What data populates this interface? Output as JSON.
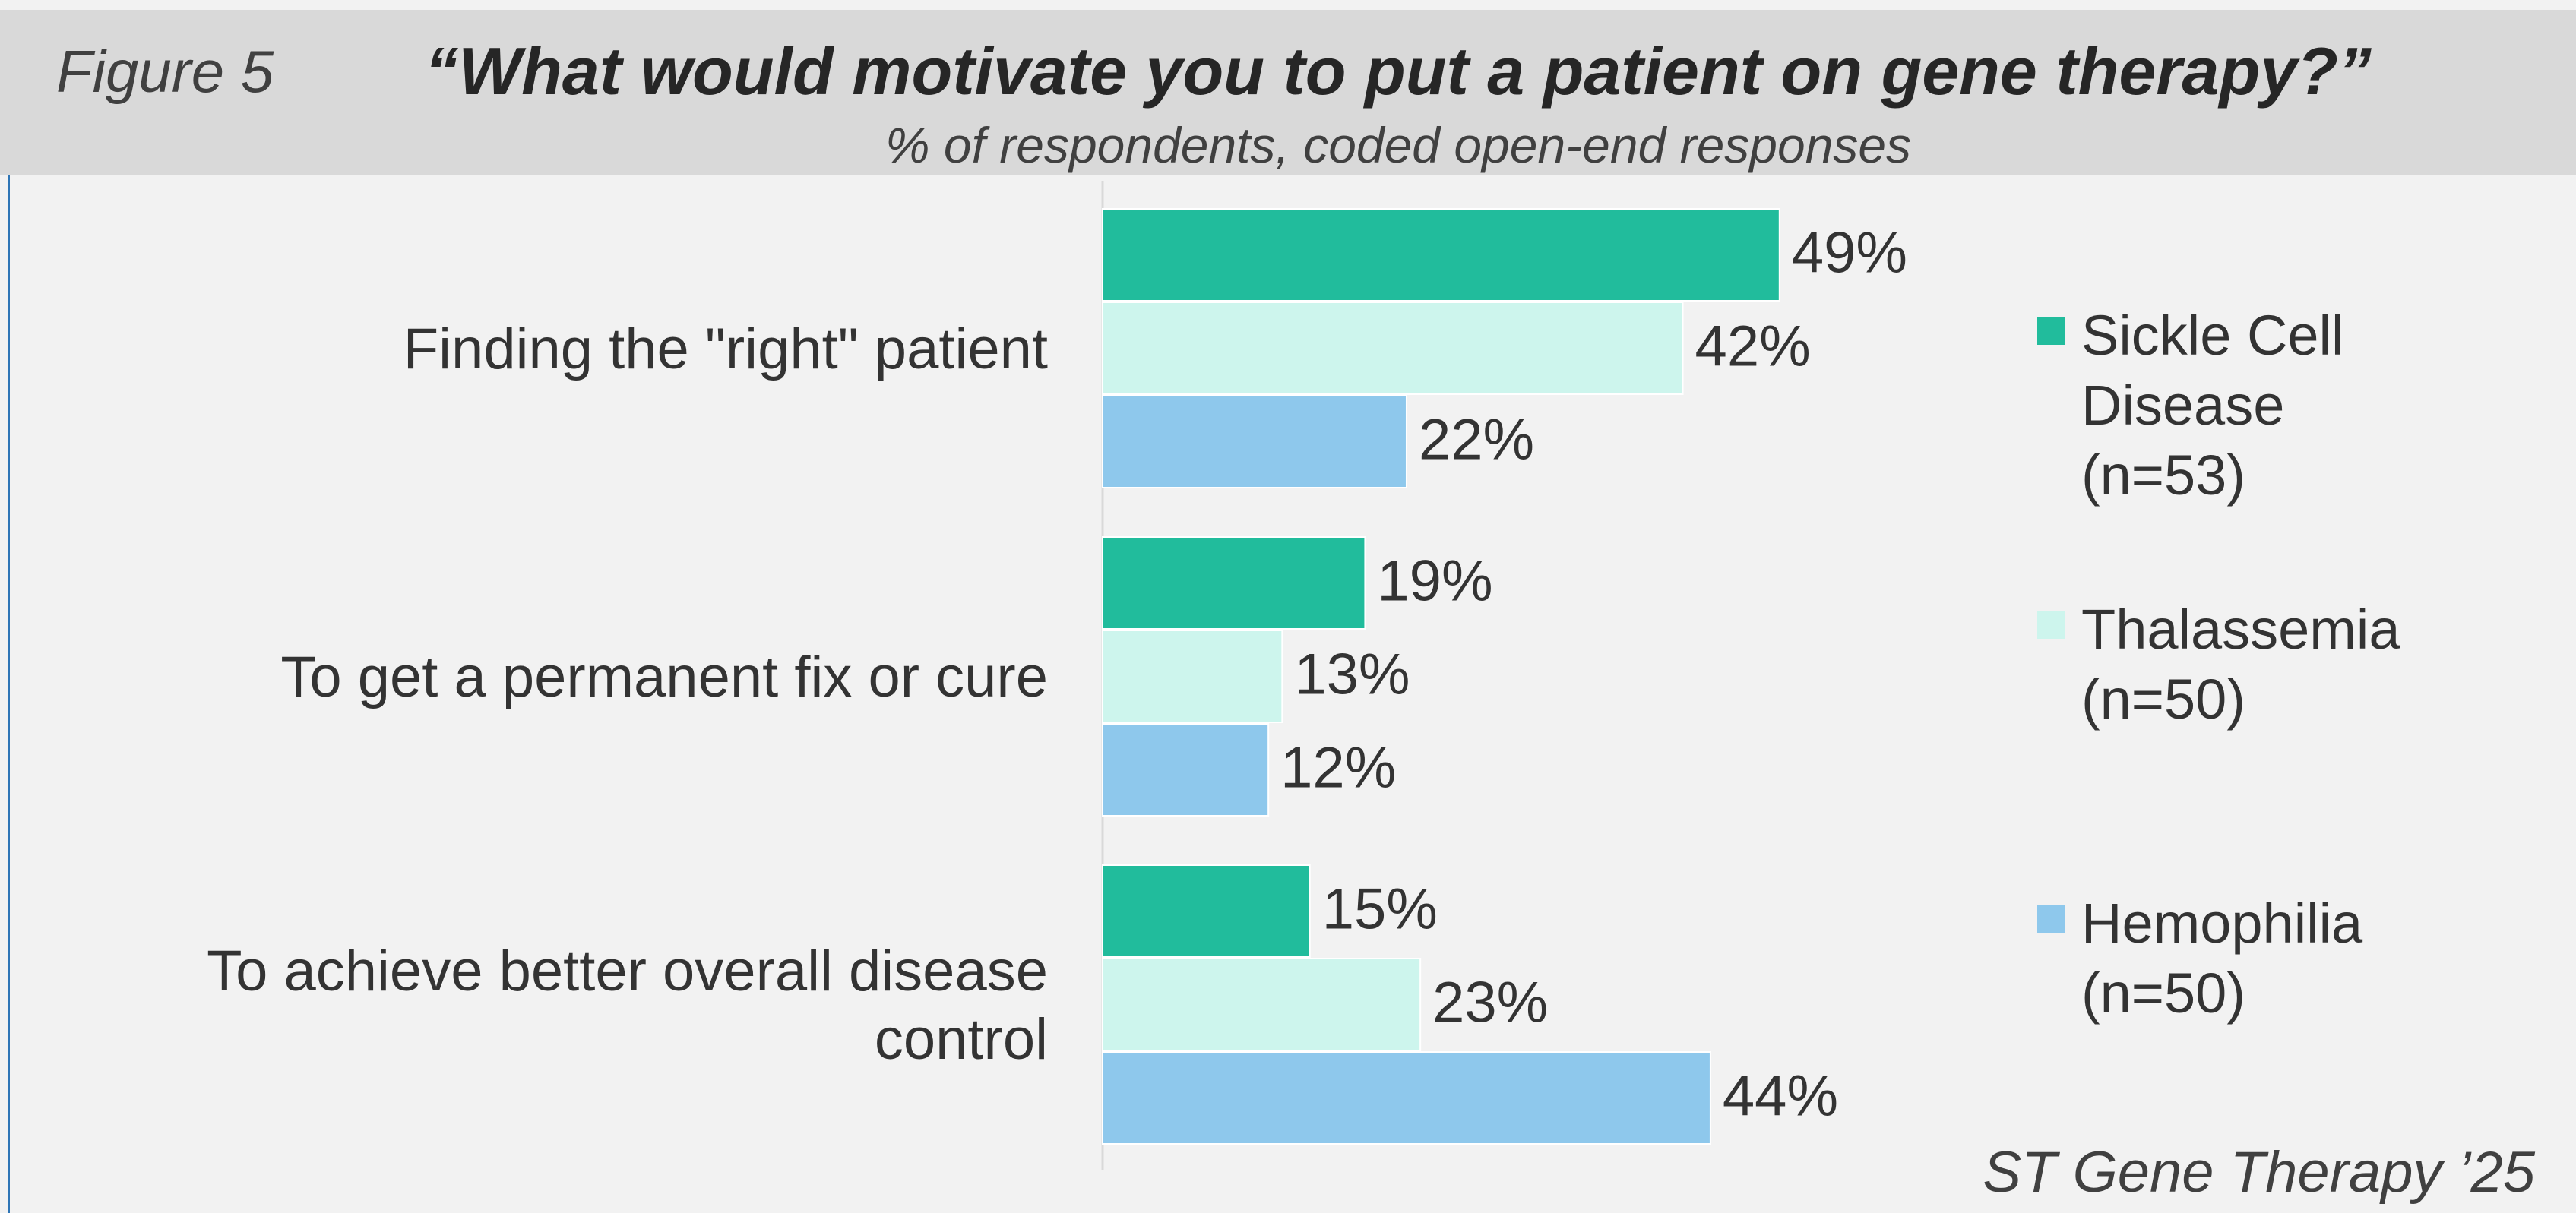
{
  "chart_data": {
    "type": "hbar",
    "figure_label": "Figure 5",
    "title": "“What would motivate you to put a patient on gene therapy?”",
    "subtitle": "% of respondents, coded open-end responses",
    "source": "ST Gene Therapy ’25",
    "categories": [
      "Finding the \"right\" patient",
      "To get a permanent fix or cure",
      "To achieve better overall disease control"
    ],
    "series": [
      {
        "name": "Sickle Cell Disease (n=53)",
        "color": "#21bc9c",
        "values": [
          49,
          19,
          15
        ],
        "value_labels": [
          "49%",
          "19%",
          "15%"
        ]
      },
      {
        "name": "Thalassemia (n=50)",
        "color": "#cdf5ed",
        "values": [
          42,
          13,
          23
        ],
        "value_labels": [
          "42%",
          "13%",
          "23%"
        ]
      },
      {
        "name": "Hemophilia (n=50)",
        "color": "#8ec8ec",
        "values": [
          22,
          12,
          44
        ],
        "value_labels": [
          "22%",
          "12%",
          "44%"
        ]
      }
    ],
    "legend": "right"
  }
}
